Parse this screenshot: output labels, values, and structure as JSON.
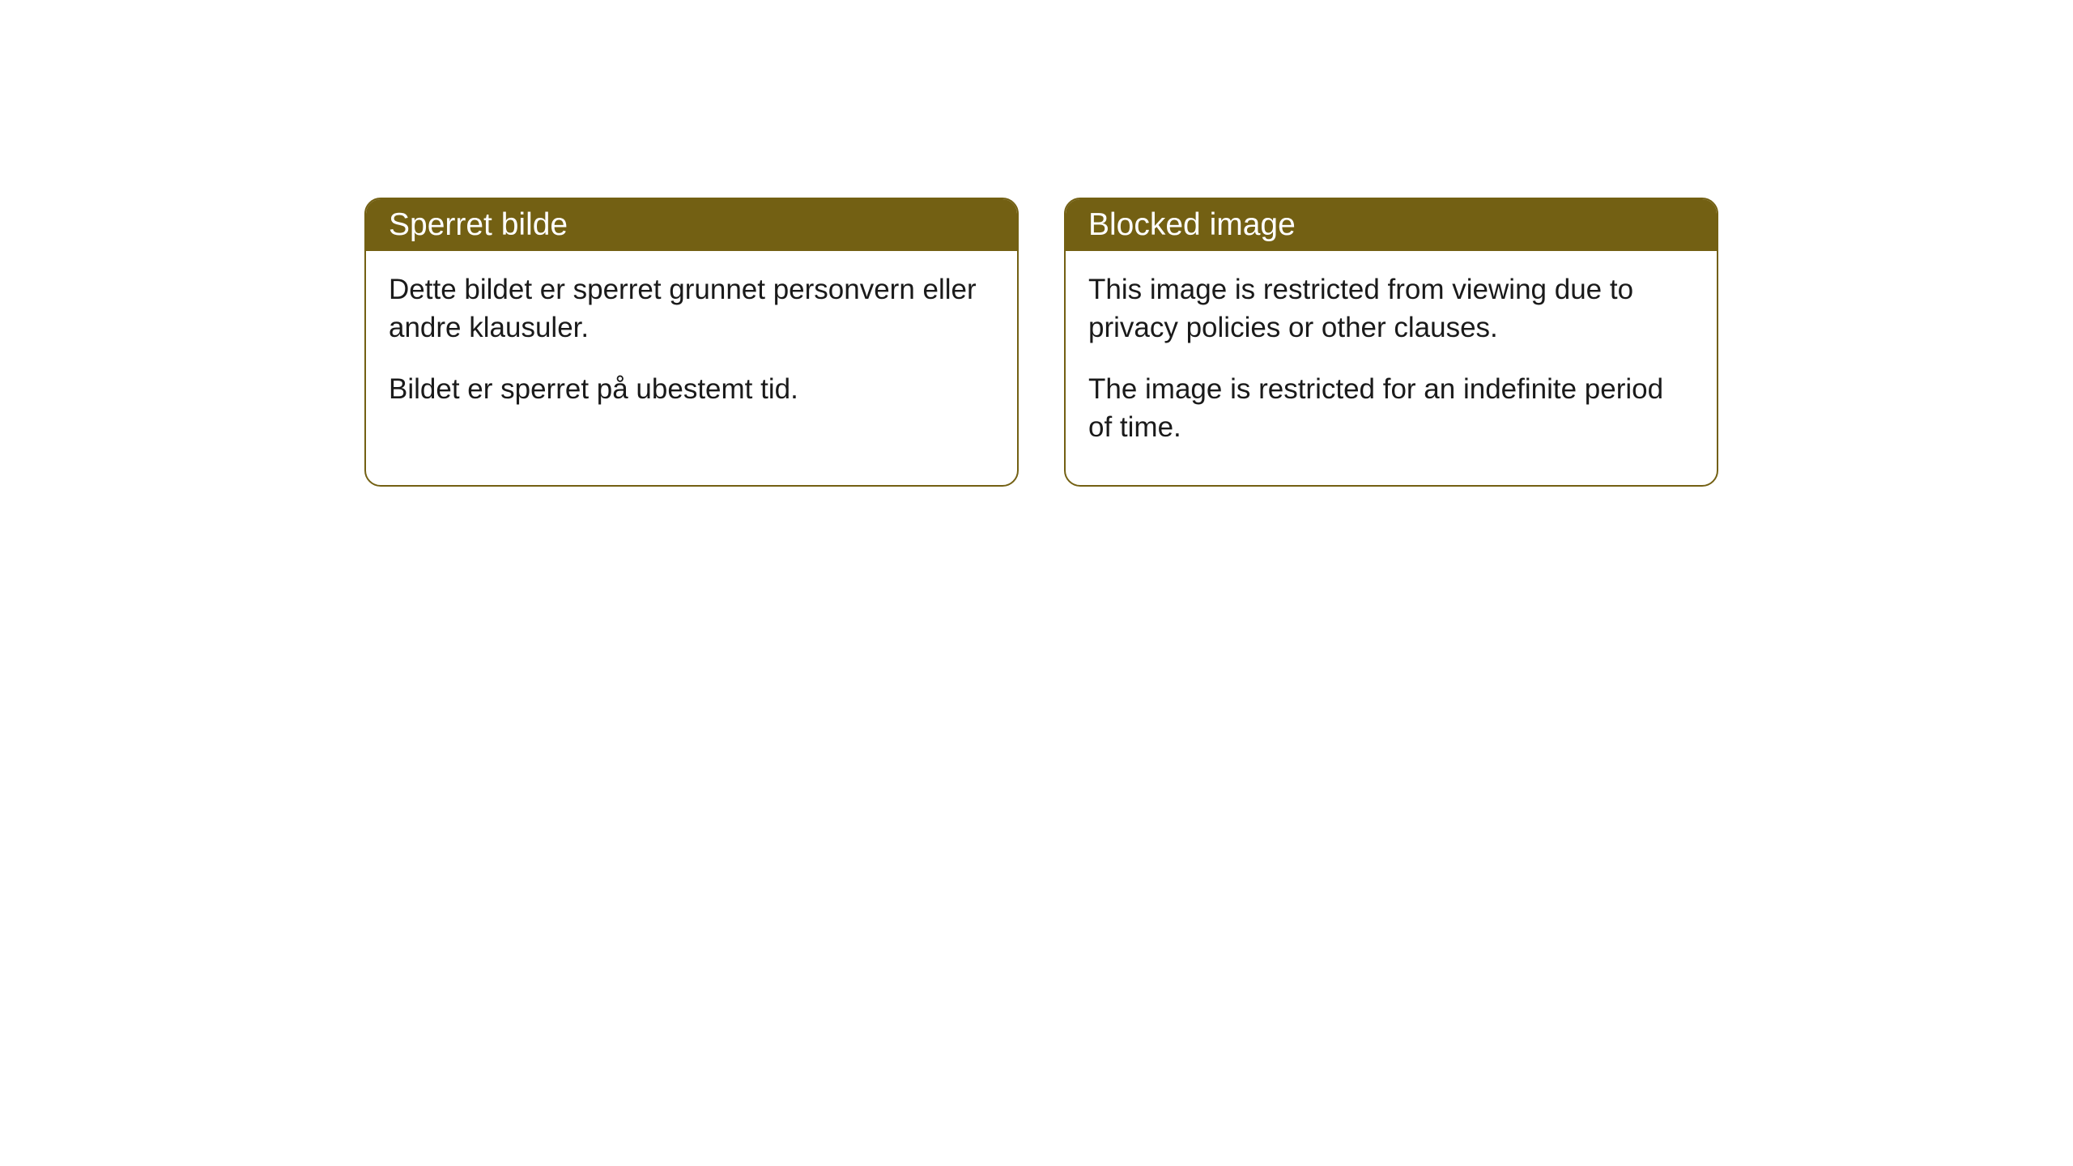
{
  "cards": [
    {
      "title": "Sperret bilde",
      "paragraph1": "Dette bildet er sperret grunnet personvern eller andre klausuler.",
      "paragraph2": "Bildet er sperret på ubestemt tid."
    },
    {
      "title": "Blocked image",
      "paragraph1": "This image is restricted from viewing due to privacy policies or other clauses.",
      "paragraph2": "The image is restricted for an indefinite period of time."
    }
  ],
  "style": {
    "header_bg": "#736013",
    "header_text": "#ffffff",
    "border_color": "#736013",
    "body_bg": "#ffffff",
    "body_text": "#1a1a1a",
    "border_radius": 20,
    "title_fontsize": 39,
    "body_fontsize": 35
  }
}
